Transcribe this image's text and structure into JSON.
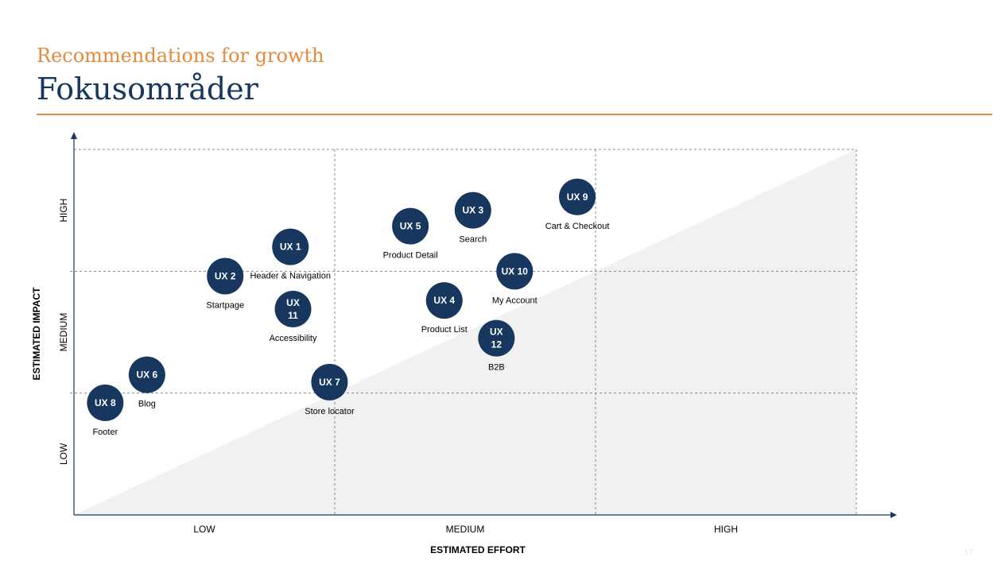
{
  "header": {
    "subtitle": "Recommendations for growth",
    "title": "Fokusområder"
  },
  "page_number": "17",
  "colors": {
    "accent": "#e58a3a",
    "navy": "#17375e",
    "triangle": "#f1f1f1",
    "grid": "#7a8aa0"
  },
  "chart_data": {
    "type": "scatter",
    "xlabel": "ESTIMATED EFFORT",
    "ylabel": "ESTIMATED IMPACT",
    "x_categories": [
      "LOW",
      "MEDIUM",
      "HIGH"
    ],
    "y_categories": [
      "LOW",
      "MEDIUM",
      "HIGH"
    ],
    "xlim": [
      0,
      3
    ],
    "ylim": [
      0,
      3
    ],
    "grid": true,
    "shaded_region": "below diagonal from (0,0) to (3,3)",
    "points": [
      {
        "id": "UX 1",
        "lines": [
          "UX 1"
        ],
        "label": "Header & Navigation",
        "x": 0.83,
        "y": 2.2
      },
      {
        "id": "UX 2",
        "lines": [
          "UX 2"
        ],
        "label": "Startpage",
        "x": 0.58,
        "y": 1.96
      },
      {
        "id": "UX 3",
        "lines": [
          "UX 3"
        ],
        "label": "Search",
        "x": 1.53,
        "y": 2.5
      },
      {
        "id": "UX 4",
        "lines": [
          "UX 4"
        ],
        "label": "Product List",
        "x": 1.42,
        "y": 1.76
      },
      {
        "id": "UX 5",
        "lines": [
          "UX 5"
        ],
        "label": "Product Detail",
        "x": 1.29,
        "y": 2.37
      },
      {
        "id": "UX 6",
        "lines": [
          "UX 6"
        ],
        "label": "Blog",
        "x": 0.28,
        "y": 1.15
      },
      {
        "id": "UX 7",
        "lines": [
          "UX 7"
        ],
        "label": "Store locator",
        "x": 0.98,
        "y": 1.09
      },
      {
        "id": "UX 8",
        "lines": [
          "UX 8"
        ],
        "label": "Footer",
        "x": 0.12,
        "y": 0.92
      },
      {
        "id": "UX 9",
        "lines": [
          "UX 9"
        ],
        "label": "Cart & Checkout",
        "x": 1.93,
        "y": 2.61
      },
      {
        "id": "UX 10",
        "lines": [
          "UX 10"
        ],
        "label": "My Account",
        "x": 1.69,
        "y": 2.0
      },
      {
        "id": "UX 11",
        "lines": [
          "UX",
          "11"
        ],
        "label": "Accessibility",
        "x": 0.84,
        "y": 1.69
      },
      {
        "id": "UX 12",
        "lines": [
          "UX",
          "12"
        ],
        "label": "B2B",
        "x": 1.62,
        "y": 1.45
      }
    ]
  }
}
